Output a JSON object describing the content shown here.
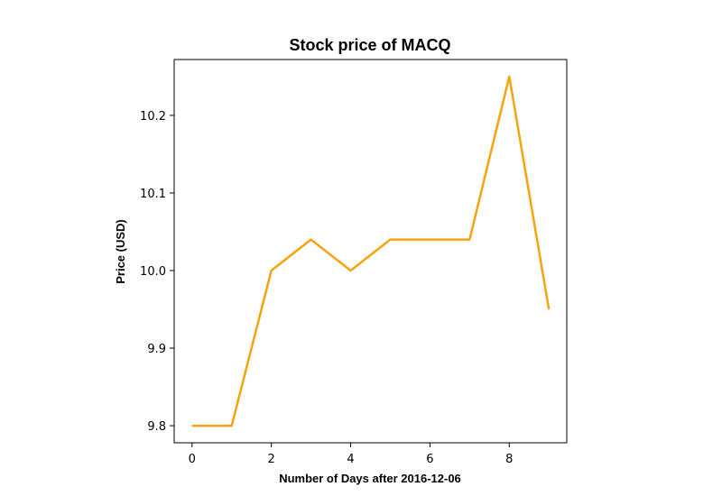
{
  "chart_data": {
    "type": "line",
    "title": "Stock price of MACQ",
    "xlabel": "Number of Days after 2016-12-06",
    "ylabel": "Price (USD)",
    "x": [
      0,
      1,
      2,
      3,
      4,
      5,
      6,
      7,
      8,
      9
    ],
    "series": [
      {
        "values": [
          9.8,
          9.8,
          10.0,
          10.04,
          10.0,
          10.04,
          10.04,
          10.04,
          10.25,
          9.95
        ],
        "color": "#f5a30f"
      }
    ],
    "xlim": [
      -0.45,
      9.45
    ],
    "ylim": [
      9.778,
      10.272
    ],
    "xticks": [
      0,
      2,
      4,
      6,
      8
    ],
    "xtick_labels": [
      "0",
      "2",
      "4",
      "6",
      "8"
    ],
    "yticks": [
      9.8,
      9.9,
      10.0,
      10.1,
      10.2
    ],
    "ytick_labels": [
      "9.8",
      "9.9",
      "10.0",
      "10.1",
      "10.2"
    ],
    "grid": false,
    "legend": "none"
  }
}
